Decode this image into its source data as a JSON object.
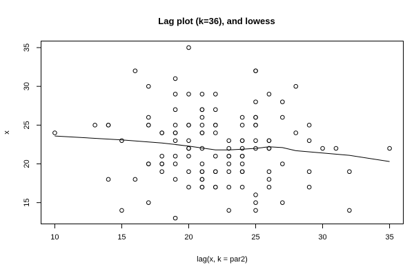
{
  "chart_data": {
    "type": "scatter",
    "title": "Lag plot (k=36), and lowess",
    "xlabel": "lag(x, k = par2)",
    "ylabel": "x",
    "xlim": [
      9,
      36
    ],
    "ylim": [
      12.3,
      35.8
    ],
    "x_ticks": [
      10,
      15,
      20,
      25,
      30,
      35
    ],
    "y_ticks": [
      15,
      20,
      25,
      30,
      35
    ],
    "grid": false,
    "points": [
      [
        10,
        24
      ],
      [
        13,
        25
      ],
      [
        14,
        25
      ],
      [
        14,
        25
      ],
      [
        14,
        18
      ],
      [
        15,
        23
      ],
      [
        15,
        14
      ],
      [
        16,
        32
      ],
      [
        16,
        18
      ],
      [
        17,
        30
      ],
      [
        17,
        26
      ],
      [
        17,
        25
      ],
      [
        17,
        25
      ],
      [
        17,
        20
      ],
      [
        17,
        20
      ],
      [
        17,
        15
      ],
      [
        18,
        24
      ],
      [
        18,
        24
      ],
      [
        18,
        21
      ],
      [
        18,
        20
      ],
      [
        18,
        20
      ],
      [
        18,
        19
      ],
      [
        19,
        31
      ],
      [
        19,
        29
      ],
      [
        19,
        27
      ],
      [
        19,
        25
      ],
      [
        19,
        24
      ],
      [
        19,
        24
      ],
      [
        19,
        23
      ],
      [
        19,
        21
      ],
      [
        19,
        20
      ],
      [
        19,
        18
      ],
      [
        19,
        13
      ],
      [
        20,
        35
      ],
      [
        20,
        29
      ],
      [
        20,
        25
      ],
      [
        20,
        25
      ],
      [
        20,
        23
      ],
      [
        20,
        22
      ],
      [
        20,
        22
      ],
      [
        20,
        21
      ],
      [
        20,
        19
      ],
      [
        20,
        17
      ],
      [
        21,
        29
      ],
      [
        21,
        27
      ],
      [
        21,
        27
      ],
      [
        21,
        26
      ],
      [
        21,
        25
      ],
      [
        21,
        24
      ],
      [
        21,
        24
      ],
      [
        21,
        22
      ],
      [
        21,
        20
      ],
      [
        21,
        19
      ],
      [
        21,
        19
      ],
      [
        21,
        18
      ],
      [
        21,
        18
      ],
      [
        21,
        17
      ],
      [
        21,
        17
      ],
      [
        22,
        29
      ],
      [
        22,
        27
      ],
      [
        22,
        25
      ],
      [
        22,
        25
      ],
      [
        22,
        24
      ],
      [
        22,
        21
      ],
      [
        22,
        19
      ],
      [
        22,
        19
      ],
      [
        22,
        17
      ],
      [
        22,
        17
      ],
      [
        23,
        23
      ],
      [
        23,
        22
      ],
      [
        23,
        21
      ],
      [
        23,
        21
      ],
      [
        23,
        20
      ],
      [
        23,
        19
      ],
      [
        23,
        17
      ],
      [
        23,
        14
      ],
      [
        24,
        26
      ],
      [
        24,
        25
      ],
      [
        24,
        23
      ],
      [
        24,
        23
      ],
      [
        24,
        22
      ],
      [
        24,
        21
      ],
      [
        24,
        21
      ],
      [
        24,
        20
      ],
      [
        24,
        19
      ],
      [
        24,
        19
      ],
      [
        24,
        17
      ],
      [
        25,
        32
      ],
      [
        25,
        32
      ],
      [
        25,
        28
      ],
      [
        25,
        26
      ],
      [
        25,
        26
      ],
      [
        25,
        25
      ],
      [
        25,
        25
      ],
      [
        25,
        23
      ],
      [
        25,
        22
      ],
      [
        25,
        16
      ],
      [
        25,
        15
      ],
      [
        25,
        14
      ],
      [
        26,
        29
      ],
      [
        26,
        23
      ],
      [
        26,
        23
      ],
      [
        26,
        22
      ],
      [
        26,
        22
      ],
      [
        26,
        19
      ],
      [
        26,
        18
      ],
      [
        26,
        17
      ],
      [
        27,
        28
      ],
      [
        27,
        26
      ],
      [
        27,
        20
      ],
      [
        27,
        15
      ],
      [
        28,
        30
      ],
      [
        28,
        24
      ],
      [
        29,
        25
      ],
      [
        29,
        23
      ],
      [
        29,
        19
      ],
      [
        29,
        17
      ],
      [
        30,
        22
      ],
      [
        31,
        22
      ],
      [
        32,
        19
      ],
      [
        32,
        14
      ],
      [
        35,
        22
      ]
    ],
    "lowess": [
      [
        10,
        23.6
      ],
      [
        15,
        23.1
      ],
      [
        18,
        22.7
      ],
      [
        20,
        22.3
      ],
      [
        22,
        21.8
      ],
      [
        23,
        21.8
      ],
      [
        24,
        21.9
      ],
      [
        25,
        22.0
      ],
      [
        26,
        22.2
      ],
      [
        27,
        22.1
      ],
      [
        28,
        21.7
      ],
      [
        30,
        21.4
      ],
      [
        32,
        21.1
      ],
      [
        35,
        20.3
      ]
    ]
  }
}
